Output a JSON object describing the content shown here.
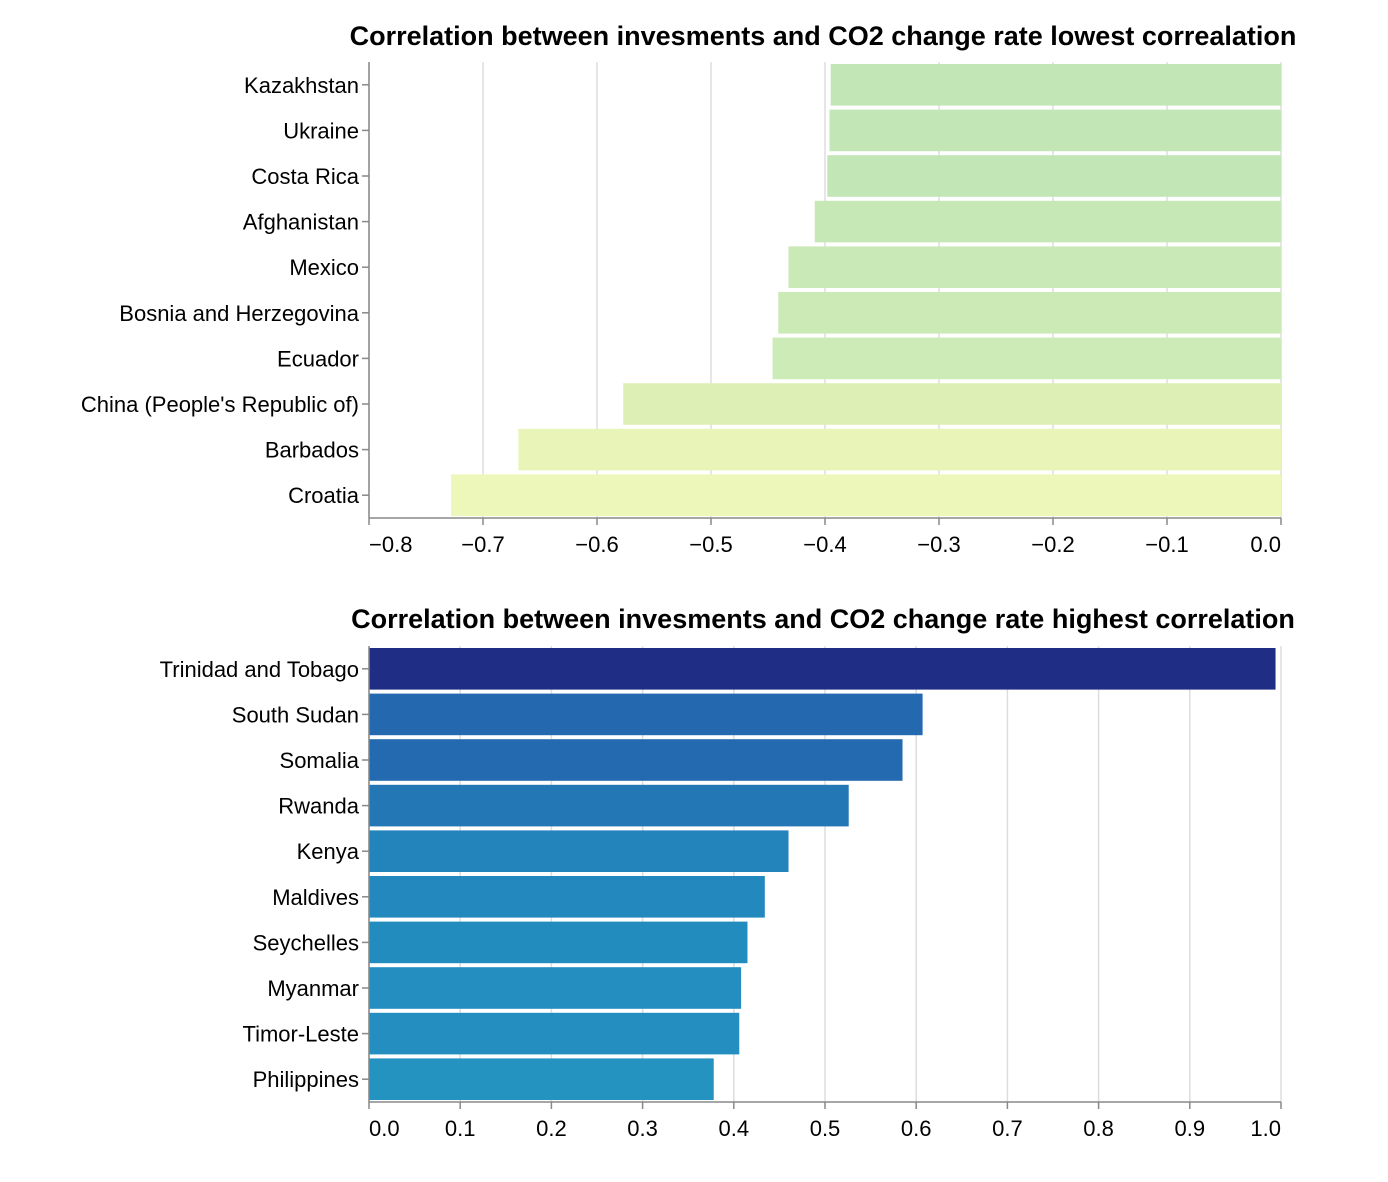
{
  "chart_data": [
    {
      "type": "bar",
      "orientation": "horizontal",
      "title": "Correlation between invesments and CO2 change rate lowest correalation",
      "xlabel": "",
      "ylabel": "",
      "xlim": [
        -0.8,
        0
      ],
      "x_ticks": [
        "−0.8",
        "−0.7",
        "−0.6",
        "−0.5",
        "−0.4",
        "−0.3",
        "−0.2",
        "−0.1",
        "0.0"
      ],
      "x_tick_values": [
        -0.8,
        -0.7,
        -0.6,
        -0.5,
        -0.4,
        -0.3,
        -0.2,
        -0.1,
        0.0
      ],
      "grid": true,
      "categories": [
        "Kazakhstan",
        "Ukraine",
        "Costa Rica",
        "Afghanistan",
        "Mexico",
        "Bosnia and Herzegovina",
        "Ecuador",
        "China (People's Republic of)",
        "Barbados",
        "Croatia"
      ],
      "values": [
        -0.395,
        -0.396,
        -0.398,
        -0.409,
        -0.432,
        -0.441,
        -0.446,
        -0.577,
        -0.669,
        -0.728
      ],
      "colors": [
        "#c3e6b6",
        "#c3e6b6",
        "#c3e6b6",
        "#c6e8b6",
        "#c9e9b6",
        "#cbeab6",
        "#ccebb7",
        "#deefb5",
        "#e8f4b8",
        "#ecf7b9"
      ]
    },
    {
      "type": "bar",
      "orientation": "horizontal",
      "title": "Correlation between invesments and CO2 change rate highest correlation",
      "xlabel": "",
      "ylabel": "",
      "xlim": [
        0,
        1
      ],
      "x_ticks": [
        "0.0",
        "0.1",
        "0.2",
        "0.3",
        "0.4",
        "0.5",
        "0.6",
        "0.7",
        "0.8",
        "0.9",
        "1.0"
      ],
      "x_tick_values": [
        0.0,
        0.1,
        0.2,
        0.3,
        0.4,
        0.5,
        0.6,
        0.7,
        0.8,
        0.9,
        1.0
      ],
      "grid": true,
      "categories": [
        "Trinidad and Tobago",
        "South Sudan",
        "Somalia",
        "Rwanda",
        "Kenya",
        "Maldives",
        "Seychelles",
        "Myanmar",
        "Timor-Leste",
        "Philippines"
      ],
      "values": [
        0.994,
        0.607,
        0.585,
        0.526,
        0.46,
        0.434,
        0.415,
        0.408,
        0.406,
        0.378
      ],
      "colors": [
        "#1f2d84",
        "#2468b0",
        "#246ab1",
        "#2477b5",
        "#2383bb",
        "#2388bd",
        "#238cbe",
        "#238ebf",
        "#238ebf",
        "#2493c0"
      ]
    }
  ]
}
